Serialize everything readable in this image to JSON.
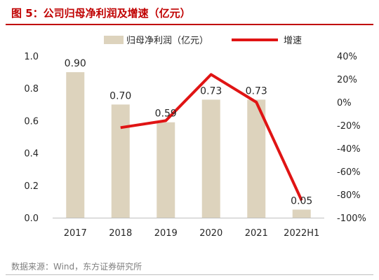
{
  "title": "图 5：公司归母净利润及增速（亿元）",
  "source": "数据来源：Wind，东方证券研究所",
  "chart_data": {
    "type": "bar",
    "categories": [
      "2017",
      "2018",
      "2019",
      "2020",
      "2021",
      "2022H1"
    ],
    "series": [
      {
        "name": "归母净利润（亿元）",
        "type": "bar",
        "axis": "left",
        "values": [
          0.9,
          0.7,
          0.59,
          0.73,
          0.73,
          0.05
        ],
        "labels": [
          "0.90",
          "0.70",
          "0.59",
          "0.73",
          "0.73",
          "0.05"
        ],
        "color": "#ddd3bd"
      },
      {
        "name": "增速",
        "type": "line",
        "axis": "right",
        "values": [
          null,
          -22,
          -16,
          24,
          0,
          -85
        ],
        "color": "#e01414"
      }
    ],
    "left_axis": {
      "min": 0,
      "max": 1.0,
      "ticks": [
        "0.0",
        "0.2",
        "0.4",
        "0.6",
        "0.8",
        "1.0"
      ]
    },
    "right_axis": {
      "min": -100,
      "max": 40,
      "ticks": [
        "-100%",
        "-80%",
        "-60%",
        "-40%",
        "-20%",
        "0%",
        "20%",
        "40%"
      ]
    },
    "legend_position": "top",
    "grid": false
  },
  "colors": {
    "title": "#c00000",
    "bar": "#ddd3bd",
    "line": "#e01414",
    "axis": "#bfbfbf",
    "text": "#262626"
  }
}
